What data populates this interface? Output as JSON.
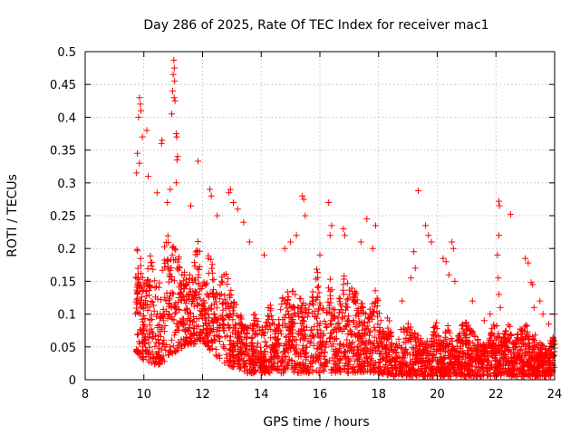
{
  "chart_data": {
    "type": "scatter",
    "title": "Day 286 of 2025, Rate Of TEC Index for receiver mac1",
    "xlabel": "GPS time / hours",
    "ylabel": "ROTI / TECUs",
    "xlim": [
      8,
      24
    ],
    "ylim": [
      0,
      0.5
    ],
    "xticks": [
      8,
      10,
      12,
      14,
      16,
      18,
      20,
      22,
      24
    ],
    "yticks": [
      0,
      0.05,
      0.1,
      0.15,
      0.2,
      0.25,
      0.3,
      0.35,
      0.4,
      0.45,
      0.5
    ],
    "xtick_labels": [
      "8",
      "10",
      "12",
      "14",
      "16",
      "18",
      "20",
      "22",
      "24"
    ],
    "ytick_labels": [
      "0",
      "0.05",
      "0.1",
      "0.15",
      "0.2",
      "0.25",
      "0.3",
      "0.35",
      "0.4",
      "0.45",
      "0.5"
    ],
    "grid": true,
    "marker": "+",
    "series_color": "#ff0000",
    "envelope": {
      "hours": [
        9.7,
        10.0,
        10.5,
        11.0,
        11.5,
        12.0,
        12.5,
        13.0,
        13.5,
        14.0,
        14.5,
        15.0,
        15.5,
        16.0,
        16.5,
        17.0,
        17.5,
        18.0,
        18.5,
        19.0,
        19.5,
        20.0,
        20.5,
        21.0,
        21.5,
        22.0,
        22.5,
        23.0,
        23.5,
        24.0
      ],
      "low": [
        0.04,
        0.03,
        0.02,
        0.04,
        0.05,
        0.06,
        0.03,
        0.02,
        0.01,
        0.01,
        0.01,
        0.01,
        0.01,
        0.01,
        0.01,
        0.01,
        0.01,
        0.01,
        0.005,
        0.005,
        0.005,
        0.005,
        0.005,
        0.005,
        0.005,
        0.005,
        0.005,
        0.005,
        0.005,
        0.005
      ],
      "high": [
        0.2,
        0.22,
        0.21,
        0.23,
        0.22,
        0.21,
        0.2,
        0.14,
        0.12,
        0.11,
        0.12,
        0.15,
        0.17,
        0.17,
        0.16,
        0.16,
        0.17,
        0.13,
        0.08,
        0.09,
        0.09,
        0.09,
        0.08,
        0.09,
        0.08,
        0.09,
        0.09,
        0.09,
        0.08,
        0.07
      ]
    },
    "notable_points": [
      {
        "x": 9.85,
        "y": 0.43
      },
      {
        "x": 9.88,
        "y": 0.42
      },
      {
        "x": 9.9,
        "y": 0.41
      },
      {
        "x": 9.82,
        "y": 0.4
      },
      {
        "x": 10.1,
        "y": 0.38
      },
      {
        "x": 9.95,
        "y": 0.37
      },
      {
        "x": 9.78,
        "y": 0.345
      },
      {
        "x": 9.85,
        "y": 0.33
      },
      {
        "x": 9.75,
        "y": 0.315
      },
      {
        "x": 10.15,
        "y": 0.31
      },
      {
        "x": 10.6,
        "y": 0.36
      },
      {
        "x": 10.62,
        "y": 0.365
      },
      {
        "x": 11.02,
        "y": 0.487
      },
      {
        "x": 11.04,
        "y": 0.475
      },
      {
        "x": 11.0,
        "y": 0.465
      },
      {
        "x": 11.05,
        "y": 0.455
      },
      {
        "x": 10.98,
        "y": 0.44
      },
      {
        "x": 11.03,
        "y": 0.43
      },
      {
        "x": 11.06,
        "y": 0.425
      },
      {
        "x": 10.95,
        "y": 0.405
      },
      {
        "x": 11.1,
        "y": 0.375
      },
      {
        "x": 11.12,
        "y": 0.37
      },
      {
        "x": 11.15,
        "y": 0.34
      },
      {
        "x": 11.13,
        "y": 0.335
      },
      {
        "x": 11.85,
        "y": 0.333
      },
      {
        "x": 11.1,
        "y": 0.3
      },
      {
        "x": 10.9,
        "y": 0.29
      },
      {
        "x": 10.45,
        "y": 0.285
      },
      {
        "x": 12.25,
        "y": 0.29
      },
      {
        "x": 12.3,
        "y": 0.28
      },
      {
        "x": 12.95,
        "y": 0.29
      },
      {
        "x": 12.9,
        "y": 0.285
      },
      {
        "x": 13.05,
        "y": 0.27
      },
      {
        "x": 13.2,
        "y": 0.26
      },
      {
        "x": 10.8,
        "y": 0.27
      },
      {
        "x": 11.6,
        "y": 0.265
      },
      {
        "x": 12.5,
        "y": 0.25
      },
      {
        "x": 13.4,
        "y": 0.24
      },
      {
        "x": 13.6,
        "y": 0.21
      },
      {
        "x": 14.1,
        "y": 0.19
      },
      {
        "x": 15.4,
        "y": 0.28
      },
      {
        "x": 15.45,
        "y": 0.275
      },
      {
        "x": 16.3,
        "y": 0.27
      },
      {
        "x": 15.5,
        "y": 0.25
      },
      {
        "x": 16.4,
        "y": 0.235
      },
      {
        "x": 16.35,
        "y": 0.22
      },
      {
        "x": 16.8,
        "y": 0.23
      },
      {
        "x": 16.85,
        "y": 0.22
      },
      {
        "x": 17.9,
        "y": 0.235
      },
      {
        "x": 17.6,
        "y": 0.245
      },
      {
        "x": 17.8,
        "y": 0.2
      },
      {
        "x": 17.4,
        "y": 0.21
      },
      {
        "x": 15.0,
        "y": 0.21
      },
      {
        "x": 14.8,
        "y": 0.2
      },
      {
        "x": 15.2,
        "y": 0.22
      },
      {
        "x": 16.0,
        "y": 0.19
      },
      {
        "x": 19.35,
        "y": 0.288
      },
      {
        "x": 19.6,
        "y": 0.235
      },
      {
        "x": 19.7,
        "y": 0.22
      },
      {
        "x": 19.8,
        "y": 0.21
      },
      {
        "x": 20.5,
        "y": 0.21
      },
      {
        "x": 20.55,
        "y": 0.2
      },
      {
        "x": 20.2,
        "y": 0.185
      },
      {
        "x": 20.3,
        "y": 0.18
      },
      {
        "x": 19.2,
        "y": 0.195
      },
      {
        "x": 19.25,
        "y": 0.17
      },
      {
        "x": 19.1,
        "y": 0.155
      },
      {
        "x": 18.8,
        "y": 0.12
      },
      {
        "x": 20.4,
        "y": 0.16
      },
      {
        "x": 20.6,
        "y": 0.15
      },
      {
        "x": 21.2,
        "y": 0.12
      },
      {
        "x": 22.1,
        "y": 0.272
      },
      {
        "x": 22.12,
        "y": 0.265
      },
      {
        "x": 22.5,
        "y": 0.252
      },
      {
        "x": 22.1,
        "y": 0.22
      },
      {
        "x": 22.05,
        "y": 0.19
      },
      {
        "x": 22.08,
        "y": 0.155
      },
      {
        "x": 22.1,
        "y": 0.13
      },
      {
        "x": 22.15,
        "y": 0.11
      },
      {
        "x": 23.0,
        "y": 0.185
      },
      {
        "x": 23.1,
        "y": 0.178
      },
      {
        "x": 23.2,
        "y": 0.148
      },
      {
        "x": 23.25,
        "y": 0.145
      },
      {
        "x": 23.5,
        "y": 0.12
      },
      {
        "x": 23.3,
        "y": 0.11
      },
      {
        "x": 23.6,
        "y": 0.1
      },
      {
        "x": 24.0,
        "y": 0.1
      },
      {
        "x": 21.8,
        "y": 0.1
      },
      {
        "x": 21.6,
        "y": 0.09
      },
      {
        "x": 23.8,
        "y": 0.085
      }
    ]
  }
}
